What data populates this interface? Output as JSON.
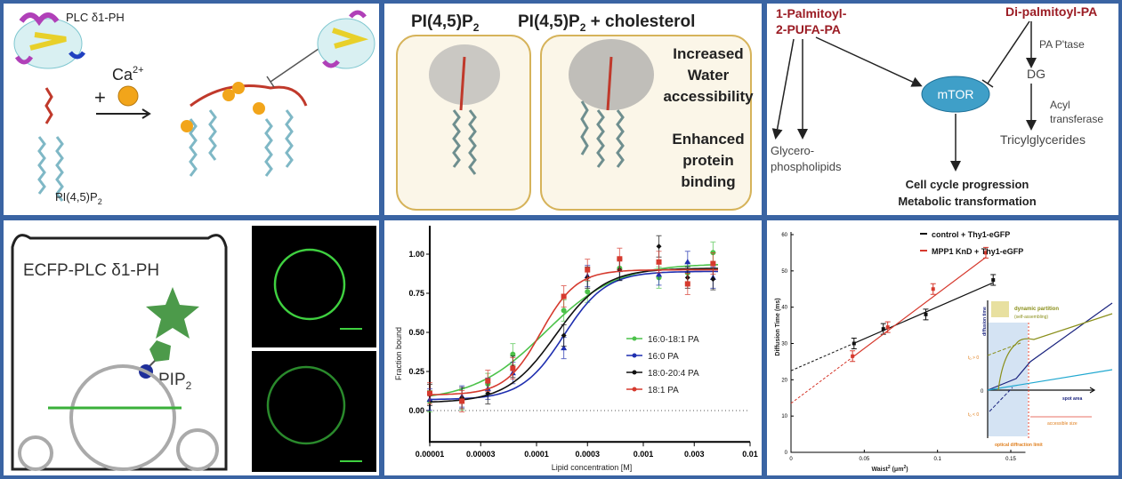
{
  "colors": {
    "frame": "#3a64a3",
    "dark_red": "#9b1c24",
    "green": "#4cc24a",
    "blue": "#1f2fb0",
    "black": "#111111",
    "red": "#d63a2e"
  },
  "panel1": {
    "protein_label": "PLC δ1-PH",
    "ion_label": "Ca",
    "ion_charge": "2+",
    "plus": "+",
    "lipid_label": "PI(4,5)P",
    "lipid_sub": "2"
  },
  "panel2": {
    "left_title": "PI(4,5)P",
    "left_sub": "2",
    "right_title": "PI(4,5)P",
    "right_sub": "2",
    "right_suffix": " + cholesterol",
    "text1": [
      "Increased",
      "Water",
      "accessibility"
    ],
    "text2": [
      "Enhanced",
      "protein",
      "binding"
    ]
  },
  "panel3": {
    "lipid1": [
      "1-Palmitoyl-",
      "2-PUFA-PA"
    ],
    "lipid2": "Di-palmitoyl-PA",
    "enzyme1": "PA P'tase",
    "dg": "DG",
    "enzyme2": [
      "Acyl",
      "transferase"
    ],
    "tg": "Tricylglycerides",
    "mtor": "mTOR",
    "glycero": [
      "Glycero-",
      "phospholipids"
    ],
    "outcome": [
      "Cell cycle progression",
      "Metabolic transformation"
    ]
  },
  "panel4": {
    "probe_label": "ECFP-PLC δ1-PH",
    "pip_label": "PIP",
    "pip_sub": "2"
  },
  "chart_data": [
    {
      "type": "scatter",
      "xlabel": "Lipid concentration [M]",
      "ylabel": "Fraction bound",
      "x_scale": "log",
      "xlim": [
        1e-05,
        0.01
      ],
      "ylim": [
        -0.2,
        1.2
      ],
      "x_ticks": [
        "0.00001",
        "0.00003",
        "0.0001",
        "0.0003",
        "0.001",
        "0.003",
        "0.01"
      ],
      "y_ticks": [
        "0.00",
        "0.25",
        "0.50",
        "0.75",
        "1.00"
      ],
      "legend_position": "center-right",
      "x": [
        1e-05,
        2e-05,
        3.5e-05,
        6e-05,
        0.00018,
        0.0003,
        0.0006,
        0.0014,
        0.0026,
        0.0045
      ],
      "series": [
        {
          "name": "16:0-18:1 PA",
          "color": "#4cc24a",
          "marker": "circle",
          "values": [
            0.06,
            0.07,
            0.17,
            0.36,
            0.64,
            0.76,
            0.91,
            0.85,
            0.88,
            1.01
          ]
        },
        {
          "name": "16:0 PA",
          "color": "#1f2fb0",
          "marker": "triangle",
          "values": [
            0.07,
            0.09,
            0.14,
            0.24,
            0.4,
            0.86,
            0.9,
            0.87,
            0.95,
            0.85
          ]
        },
        {
          "name": "18:0-20:4 PA",
          "color": "#111111",
          "marker": "diamond",
          "values": [
            0.1,
            0.08,
            0.11,
            0.28,
            0.48,
            0.85,
            0.9,
            1.05,
            0.85,
            0.84
          ]
        },
        {
          "name": "18:1 PA",
          "color": "#d63a2e",
          "marker": "square",
          "values": [
            0.11,
            0.06,
            0.19,
            0.27,
            0.73,
            0.9,
            0.97,
            0.95,
            0.81,
            0.94
          ]
        }
      ]
    },
    {
      "type": "line",
      "xlabel": "Waist",
      "xlabel_sup": "2",
      "xlabel_unit": " (μm",
      "xlabel_unit_sup": "2",
      "xlabel_end": ")",
      "ylabel": "Diffusion Time (ms)",
      "xlim": [
        0,
        0.16
      ],
      "ylim": [
        0,
        60
      ],
      "x_ticks": [
        "0",
        "0.05",
        "0.1",
        "0.15"
      ],
      "y_ticks": [
        "0",
        "10",
        "20",
        "30",
        "40",
        "50",
        "60"
      ],
      "legend_position": "top-right",
      "series": [
        {
          "name": "control + Thy1-eGFP",
          "color": "#111111",
          "x": [
            0.043,
            0.063,
            0.092,
            0.138
          ],
          "values": [
            30,
            34,
            38,
            47.5
          ],
          "intercept": 22.5
        },
        {
          "name": "MPP1 KnD + Thy1-eGFP",
          "color": "#d63a2e",
          "x": [
            0.042,
            0.066,
            0.097,
            0.133
          ],
          "values": [
            26.5,
            34.5,
            45,
            55
          ],
          "intercept": 13.5
        }
      ],
      "inset": {
        "title": "dynamic partition",
        "subtitle": "(self-assembling)",
        "ylabel": "diffusion time",
        "xlabel": "spot area",
        "zero": "0",
        "t_pos": "t",
        "t_pos_sub": "0",
        "t_pos_rel": " > 0",
        "t_neg": "t",
        "t_neg_sub": "0",
        "t_neg_rel": " < 0",
        "accessible": "accessible size",
        "diffraction": "optical diffraction limit"
      }
    }
  ]
}
